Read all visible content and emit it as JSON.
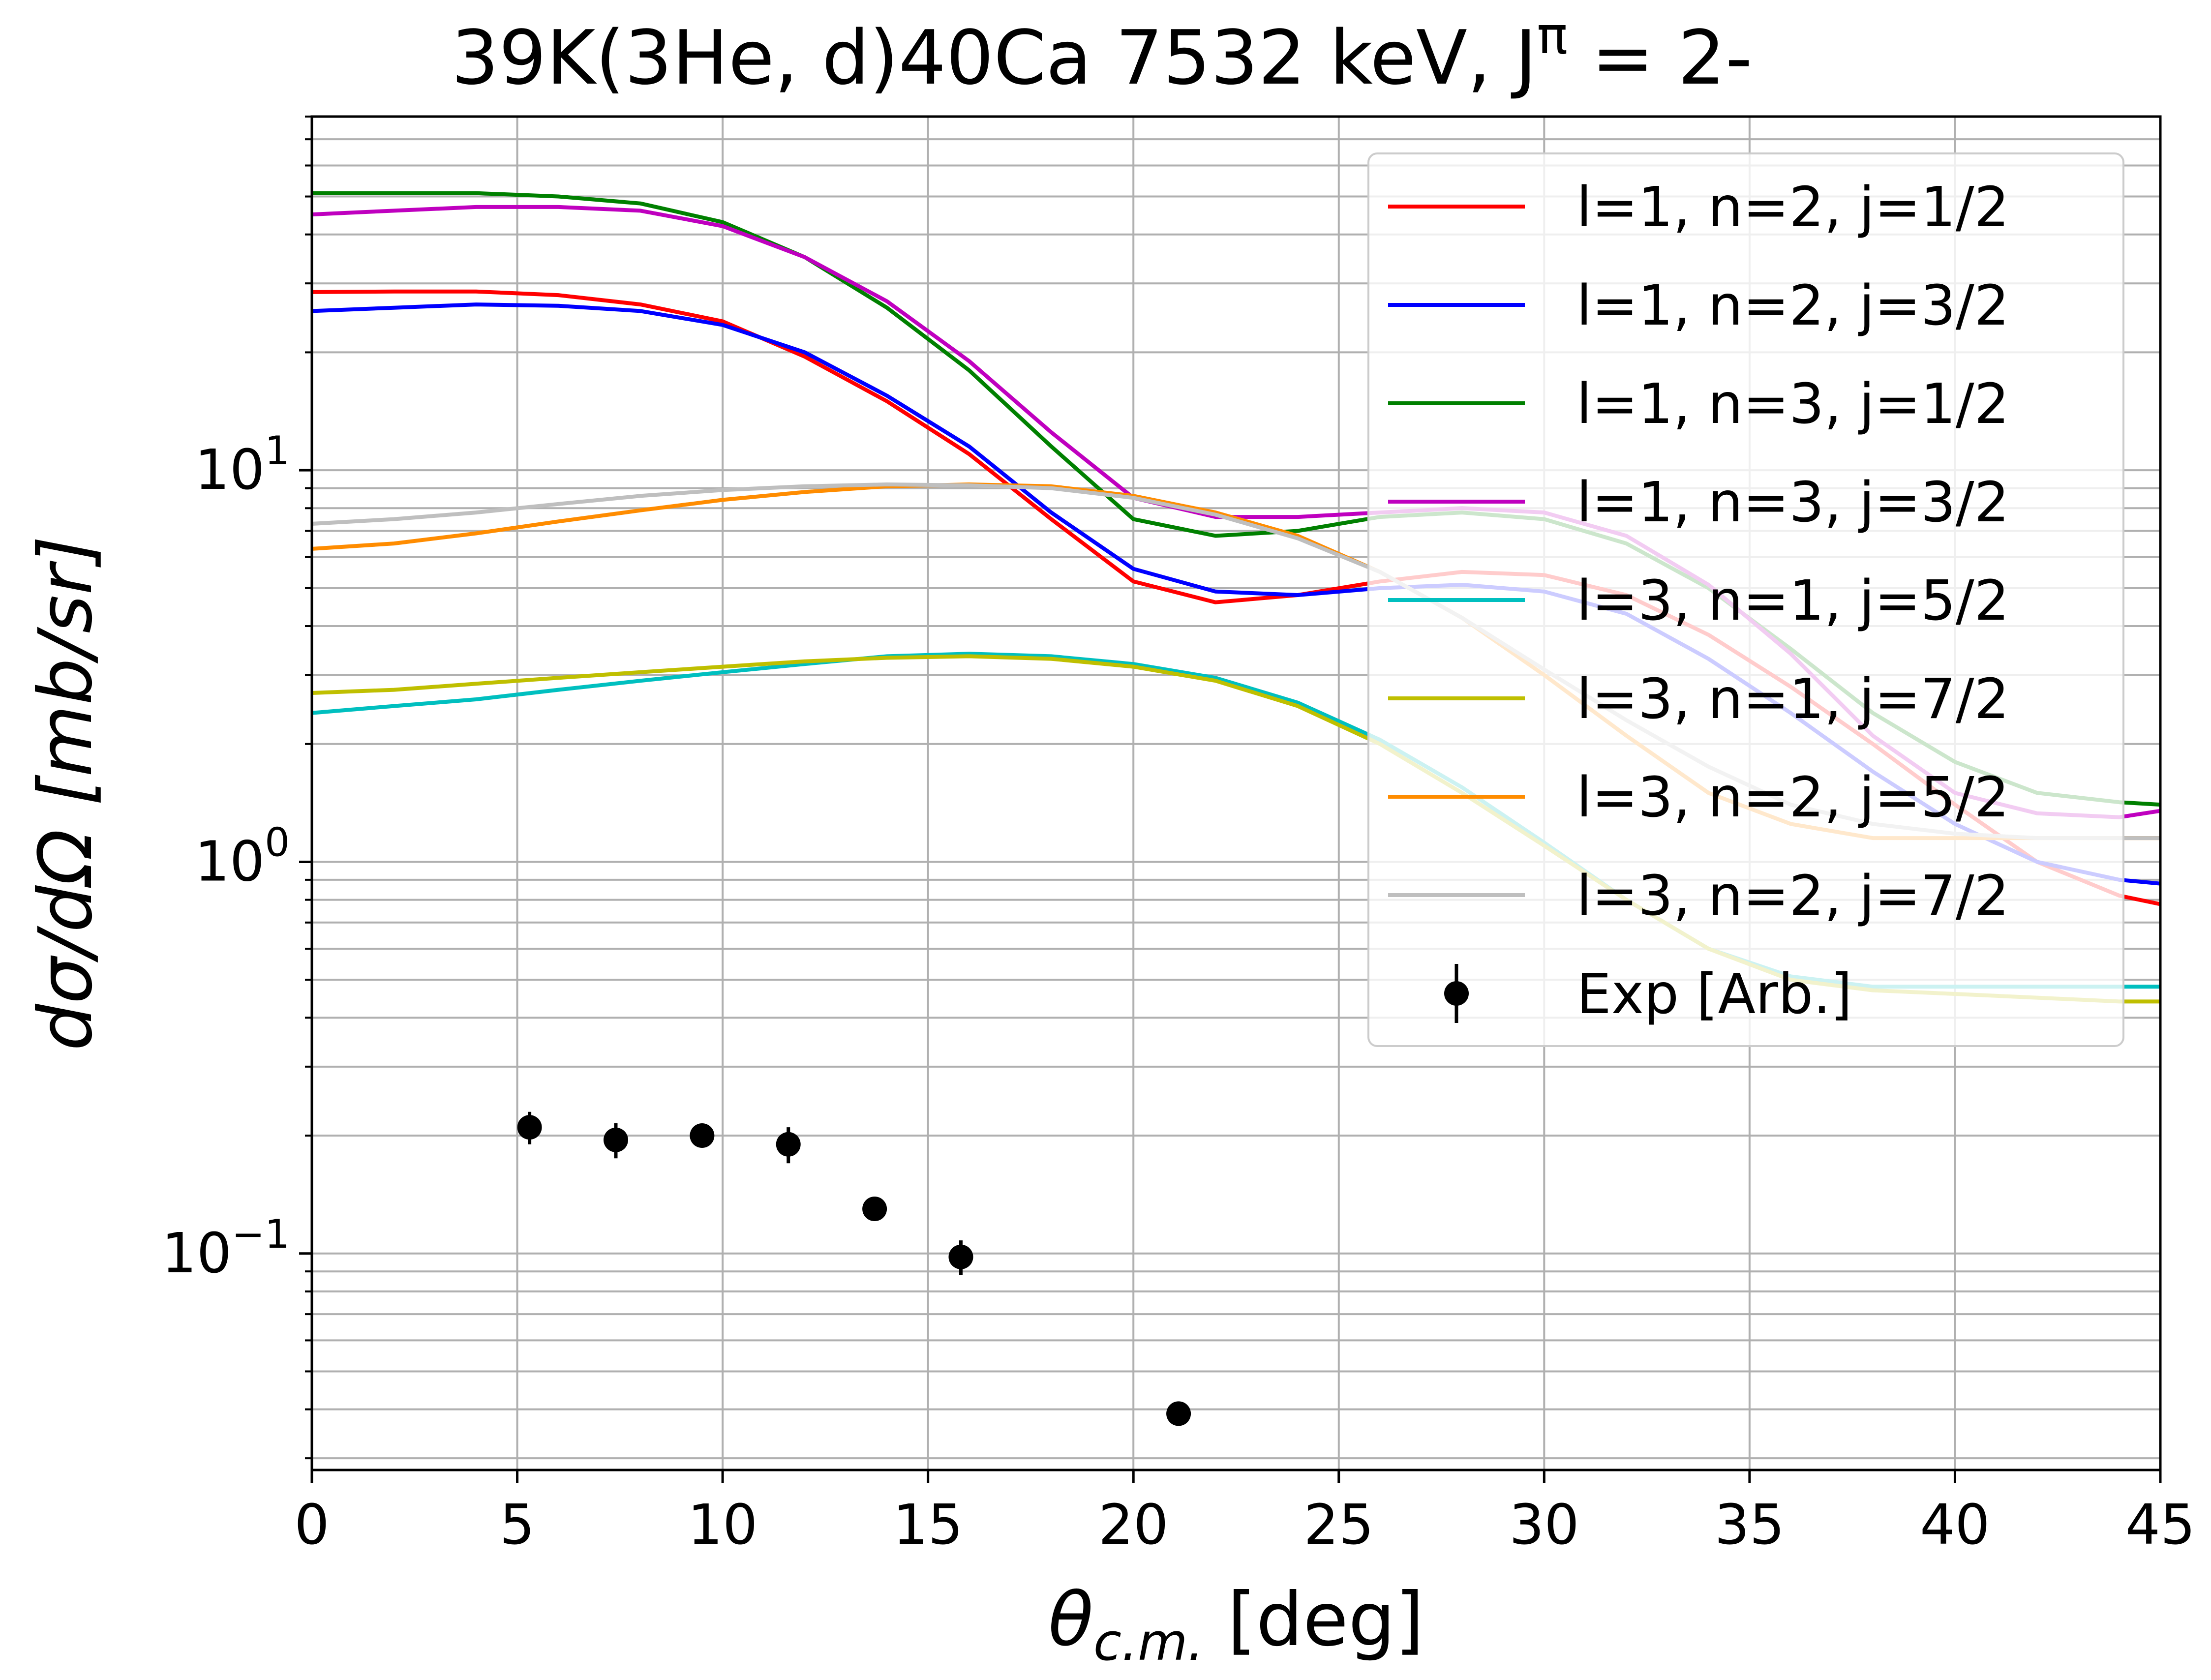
{
  "chart_data": {
    "type": "line",
    "title_main": "39K(3He, d)40Ca 7532 keV, J",
    "title_sup": "π",
    "title_tail": " = 2-",
    "xlabel_sym": "θ",
    "xlabel_sub": "c.m.",
    "xlabel_unit": " [deg]",
    "ylabel": "dσ/dΩ [mb/sr]",
    "xlim": [
      0,
      45
    ],
    "ylim": [
      0.028,
      80
    ],
    "yscale": "log",
    "grid": true,
    "legend_position": "upper right",
    "x_ticks": [
      "0",
      "5",
      "10",
      "15",
      "20",
      "25",
      "30",
      "35",
      "40",
      "45"
    ],
    "y_ticks": [
      {
        "base": "10",
        "exp": "−1"
      },
      {
        "base": "10",
        "exp": "0"
      },
      {
        "base": "10",
        "exp": "1"
      }
    ],
    "x": [
      0,
      2,
      4,
      6,
      8,
      10,
      12,
      14,
      16,
      18,
      20,
      22,
      24,
      26,
      28,
      30,
      32,
      34,
      36,
      38,
      40,
      42,
      44,
      45
    ],
    "series": [
      {
        "name": "l=1, n=2, j=1/2",
        "color": "#ff0000",
        "values": [
          28.5,
          28.6,
          28.6,
          28.0,
          26.5,
          24.0,
          19.5,
          15.0,
          11.0,
          7.5,
          5.2,
          4.6,
          4.8,
          5.2,
          5.5,
          5.4,
          4.8,
          3.8,
          2.8,
          2.0,
          1.4,
          1.0,
          0.82,
          0.78
        ]
      },
      {
        "name": "l=1, n=2, j=3/2",
        "color": "#0000ff",
        "values": [
          25.5,
          26.0,
          26.5,
          26.3,
          25.5,
          23.5,
          20.0,
          15.5,
          11.5,
          7.8,
          5.6,
          4.9,
          4.8,
          5.0,
          5.1,
          4.9,
          4.3,
          3.3,
          2.4,
          1.7,
          1.25,
          1.0,
          0.9,
          0.88
        ]
      },
      {
        "name": "l=1, n=3, j=1/2",
        "color": "#008000",
        "values": [
          51,
          51,
          51,
          50,
          48,
          43,
          35,
          26,
          18,
          11.5,
          7.5,
          6.8,
          7.0,
          7.6,
          7.8,
          7.5,
          6.5,
          5.0,
          3.5,
          2.4,
          1.8,
          1.5,
          1.42,
          1.4
        ]
      },
      {
        "name": "l=1, n=3, j=3/2",
        "color": "#bf00bf",
        "values": [
          45,
          46,
          47,
          47,
          46,
          42,
          35,
          27,
          19,
          12.5,
          8.5,
          7.6,
          7.6,
          7.8,
          8.0,
          7.8,
          6.8,
          5.1,
          3.4,
          2.1,
          1.5,
          1.33,
          1.3,
          1.35
        ]
      },
      {
        "name": "l=3, n=1, j=5/2",
        "color": "#00bfbf",
        "values": [
          2.4,
          2.5,
          2.6,
          2.75,
          2.9,
          3.05,
          3.2,
          3.35,
          3.4,
          3.35,
          3.2,
          2.95,
          2.55,
          2.05,
          1.55,
          1.12,
          0.8,
          0.6,
          0.51,
          0.48,
          0.48,
          0.48,
          0.48,
          0.48
        ]
      },
      {
        "name": "l=3, n=1, j=7/2",
        "color": "#bfbf00",
        "values": [
          2.7,
          2.75,
          2.85,
          2.95,
          3.05,
          3.15,
          3.25,
          3.32,
          3.35,
          3.3,
          3.15,
          2.9,
          2.5,
          2.0,
          1.5,
          1.1,
          0.8,
          0.6,
          0.5,
          0.47,
          0.46,
          0.45,
          0.44,
          0.44
        ]
      },
      {
        "name": "l=3, n=2, j=5/2",
        "color": "#ff8c00",
        "values": [
          6.3,
          6.5,
          6.9,
          7.4,
          7.9,
          8.4,
          8.8,
          9.1,
          9.2,
          9.1,
          8.6,
          7.8,
          6.8,
          5.5,
          4.2,
          3.0,
          2.1,
          1.5,
          1.25,
          1.15,
          1.15,
          1.15,
          1.15,
          1.15
        ]
      },
      {
        "name": "l=3, n=2, j=7/2",
        "color": "#bfbfbf",
        "values": [
          7.3,
          7.5,
          7.8,
          8.2,
          8.6,
          8.9,
          9.1,
          9.2,
          9.15,
          9.0,
          8.5,
          7.7,
          6.7,
          5.5,
          4.2,
          3.1,
          2.3,
          1.75,
          1.4,
          1.25,
          1.18,
          1.15,
          1.15,
          1.15
        ]
      }
    ],
    "experimental": {
      "name": "Exp [Arb.]",
      "color": "#000000",
      "x": [
        5.3,
        7.4,
        9.5,
        11.6,
        13.7,
        15.8,
        21.1
      ],
      "y": [
        0.21,
        0.195,
        0.2,
        0.19,
        0.13,
        0.098,
        0.039
      ],
      "yerr": [
        0.02,
        0.02,
        0.012,
        0.02,
        0.008,
        0.01,
        0.002
      ]
    }
  }
}
